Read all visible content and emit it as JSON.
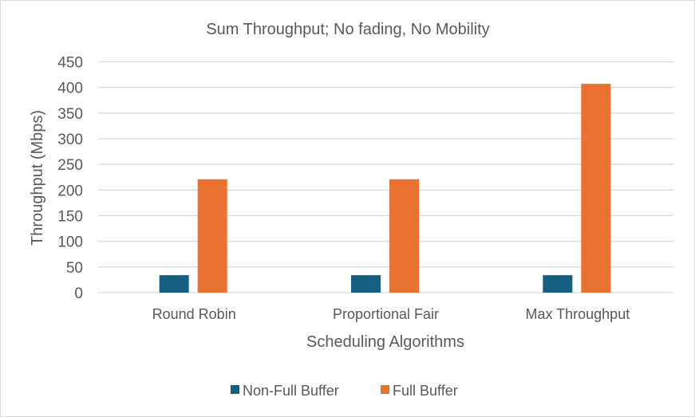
{
  "chart_data": {
    "type": "bar",
    "title": "Sum Throughput; No fading, No Mobility",
    "xlabel": "Scheduling Algorithms",
    "ylabel": "Throughput (Mbps)",
    "ylim": [
      0,
      450
    ],
    "yticks": [
      0,
      50,
      100,
      150,
      200,
      250,
      300,
      350,
      400,
      450
    ],
    "grid": true,
    "legend_position": "bottom",
    "categories": [
      "Round Robin",
      "Proportional Fair",
      "Max Throughput"
    ],
    "series": [
      {
        "name": "Non-Full Buffer",
        "color": "#156082",
        "values": [
          34,
          34,
          34
        ]
      },
      {
        "name": "Full Buffer",
        "color": "#e97132",
        "values": [
          221,
          221,
          407
        ]
      }
    ]
  }
}
